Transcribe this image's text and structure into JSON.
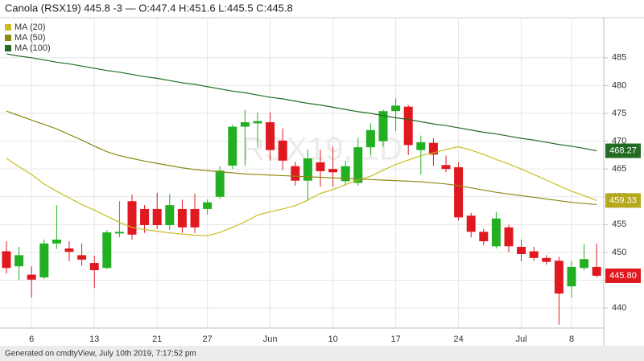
{
  "chart_data": {
    "type": "candlestick",
    "title": "Canola (RSX19) 445.8 -3 — O:447.4 H:451.6 L:445.5 C:445.8",
    "watermark": "RSX19, 1D",
    "footer": "Generated on cmdtyView, July 10th 2019, 7:17:52 pm",
    "categories": [
      null,
      null,
      "6",
      null,
      null,
      null,
      null,
      "13",
      null,
      null,
      null,
      null,
      "21",
      null,
      null,
      null,
      "27",
      null,
      null,
      null,
      null,
      "Jun",
      null,
      null,
      null,
      null,
      "10",
      null,
      null,
      null,
      null,
      "17",
      null,
      null,
      null,
      null,
      "24",
      null,
      null,
      null,
      null,
      "Jul",
      null,
      null,
      null,
      "8",
      null,
      null
    ],
    "open": [
      450.2,
      447.5,
      446,
      445.5,
      451.6,
      450.7,
      449.5,
      448.1,
      447.2,
      453.4,
      459.2,
      457.8,
      457.8,
      454.9,
      457.8,
      457.8,
      457.8,
      460,
      465.6,
      472.6,
      473.2,
      473.4,
      470.1,
      465.5,
      462.9,
      466.2,
      465,
      462.8,
      462.5,
      468.9,
      470,
      475.4,
      476.2,
      468.4,
      469.7,
      465.7,
      465.3,
      456.6,
      453.7,
      451.1,
      454.5,
      451,
      450.2,
      449,
      448.5,
      443.9,
      447.2,
      447.4
    ],
    "high": [
      452,
      451,
      447.5,
      452.3,
      458.5,
      452,
      451.6,
      449.4,
      454,
      459.2,
      460.4,
      458.5,
      460.7,
      460.5,
      459.5,
      460.5,
      459.5,
      465.5,
      473,
      475.6,
      475.2,
      475.2,
      472.3,
      466.3,
      468.5,
      468.5,
      469,
      466.5,
      470.6,
      473.2,
      475.7,
      477.7,
      476.5,
      471,
      470.5,
      467.4,
      466.2,
      457.1,
      454.2,
      457.3,
      455,
      452.3,
      451,
      449.5,
      449.2,
      448.5,
      451.5,
      451.6
    ],
    "low": [
      446.2,
      445,
      441.9,
      445.2,
      450.6,
      448.4,
      447.6,
      443.6,
      447,
      452.7,
      452.3,
      453.5,
      454.2,
      454,
      453.5,
      453.5,
      456.8,
      459.6,
      465,
      465.6,
      469,
      466.5,
      464.8,
      462,
      459.3,
      461.8,
      461.8,
      462,
      462,
      467.5,
      469,
      471.8,
      467.5,
      464,
      465.6,
      464.4,
      455.7,
      452.7,
      451.3,
      450.7,
      450,
      448.4,
      448.5,
      447.8,
      437,
      441.9,
      446.8,
      445.5
    ],
    "close": [
      447.2,
      449.5,
      445.1,
      451.6,
      452.3,
      450.1,
      448.7,
      446.8,
      453.6,
      453.7,
      453.2,
      454.9,
      454.9,
      458.5,
      454.5,
      454.5,
      459,
      464.7,
      472.6,
      473.4,
      473.6,
      468.4,
      466.5,
      462.9,
      466.9,
      464.6,
      464.4,
      465.5,
      468.9,
      472,
      475.4,
      476.4,
      469.3,
      469.8,
      467.6,
      465,
      456.3,
      453.7,
      452,
      456.1,
      451.1,
      449.7,
      449,
      448.3,
      442.6,
      447.4,
      448.8,
      445.8
    ],
    "close_label": "445.80",
    "up_color": "#22b022",
    "down_color": "#e0181f",
    "series": [
      {
        "name": "MA (20)",
        "color": "#c9bd1f",
        "values": [
          466.9,
          465.4,
          464.0,
          462.3,
          461.0,
          459.8,
          458.6,
          457.6,
          456.5,
          455.4,
          454.5,
          454.1,
          453.8,
          453.5,
          453.3,
          453.1,
          453.0,
          453.6,
          454.5,
          455.5,
          456.7,
          457.3,
          457.8,
          458.4,
          459.4,
          460.6,
          461.3,
          462.2,
          463.0,
          463.7,
          464.8,
          465.8,
          466.6,
          467.4,
          467.9,
          468.5,
          469.0,
          468.4,
          467.6,
          466.7,
          465.9,
          465.0,
          464.0,
          463.0,
          462.0,
          461.0,
          460.2,
          459.33
        ]
      },
      {
        "name": "MA (50)",
        "color": "#8c8a12",
        "values": [
          475.4,
          474.6,
          473.8,
          473.0,
          472.2,
          471.2,
          470.2,
          469.1,
          468.1,
          467.4,
          466.9,
          466.4,
          466.0,
          465.6,
          465.2,
          464.9,
          464.7,
          464.5,
          464.3,
          464.1,
          464.0,
          463.9,
          463.8,
          463.7,
          463.6,
          463.5,
          463.4,
          463.3,
          463.2,
          463.1,
          463.0,
          462.9,
          462.8,
          462.7,
          462.5,
          462.3,
          462.0,
          461.6,
          461.2,
          460.8,
          460.5,
          460.2,
          459.9,
          459.6,
          459.3,
          459.0,
          458.8,
          458.6
        ]
      },
      {
        "name": "MA (100)",
        "color": "#236b23",
        "values": [
          485.7,
          485.3,
          485.0,
          484.6,
          484.2,
          483.9,
          483.5,
          483.1,
          482.7,
          482.4,
          482.0,
          481.6,
          481.3,
          480.9,
          480.5,
          480.2,
          479.8,
          479.4,
          479.0,
          478.7,
          478.3,
          477.9,
          477.6,
          477.2,
          476.8,
          476.5,
          476.1,
          475.7,
          475.3,
          475.0,
          474.6,
          474.2,
          473.9,
          473.5,
          473.1,
          472.8,
          472.4,
          472.0,
          471.6,
          471.3,
          470.9,
          470.5,
          470.2,
          469.8,
          469.4,
          469.1,
          468.7,
          468.27
        ]
      }
    ],
    "ylim": [
      436.4,
      492.2
    ],
    "yticks": [
      440,
      445,
      450,
      455,
      460,
      465,
      470,
      475,
      480,
      485
    ],
    "grid": true
  }
}
